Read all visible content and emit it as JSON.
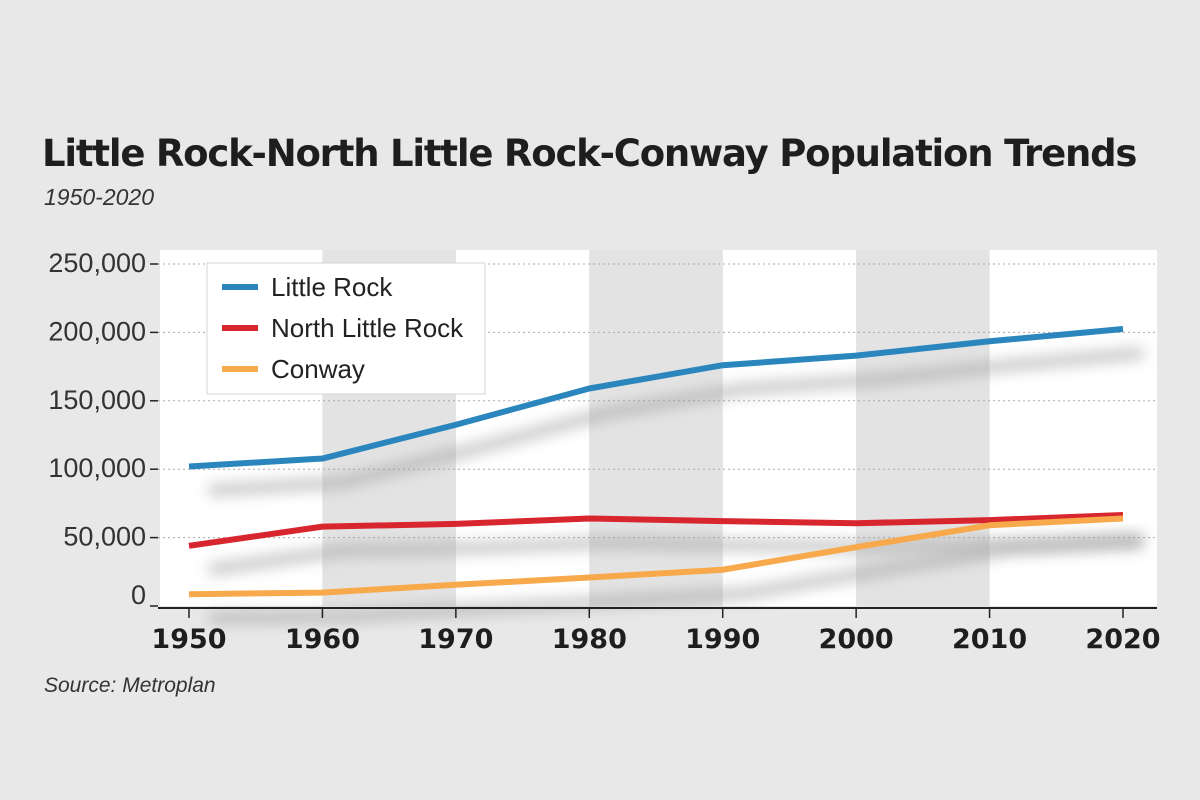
{
  "chart_data": {
    "type": "line",
    "title": "Little Rock-North Little Rock-Conway Population Trends",
    "subtitle": "1950-2020",
    "source": "Source: Metroplan",
    "x": [
      1950,
      1960,
      1970,
      1980,
      1990,
      2000,
      2010,
      2020
    ],
    "x_tick_labels": [
      "1950",
      "1960",
      "1970",
      "1980",
      "1990",
      "2000",
      "2010",
      "2020"
    ],
    "y_ticks": [
      0,
      50000,
      100000,
      150000,
      200000,
      250000
    ],
    "y_tick_labels": [
      "0",
      "50,000",
      "100,000",
      "150,000",
      "200,000",
      "250,000"
    ],
    "ylim": [
      0,
      250000
    ],
    "legend_position": "top-left",
    "series": [
      {
        "name": "Little Rock",
        "color": "#2a86bc",
        "values": [
          102000,
          107800,
          132500,
          159000,
          176000,
          183000,
          193500,
          202500
        ]
      },
      {
        "name": "North Little Rock",
        "color": "#d8262e",
        "values": [
          44000,
          58000,
          60000,
          64000,
          62000,
          60500,
          62800,
          66500
        ]
      },
      {
        "name": "Conway",
        "color": "#f8a94c",
        "values": [
          8600,
          9800,
          15500,
          20800,
          26500,
          43000,
          59000,
          64000
        ]
      }
    ]
  }
}
